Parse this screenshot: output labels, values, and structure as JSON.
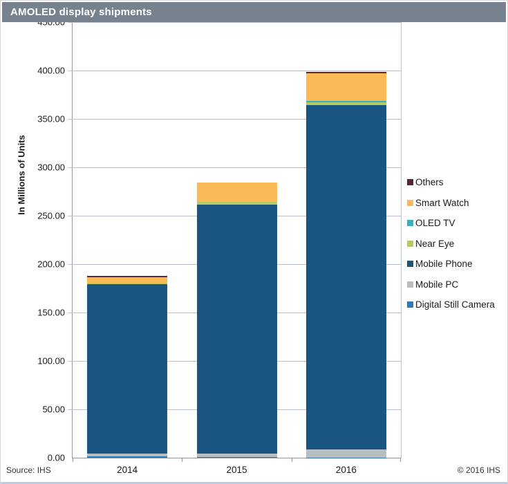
{
  "header": {
    "title": "AMOLED display shipments"
  },
  "footer": {
    "source": "Source: IHS",
    "copyright": "© 2016 IHS"
  },
  "colors": {
    "titlebar_bg": "#76838F",
    "titlebar_text": "#ffffff",
    "gridline": "#BAC0C9",
    "axis": "#8F96A0"
  },
  "chart_data": {
    "type": "bar",
    "stacked": true,
    "title": "AMOLED display shipments",
    "xlabel": "",
    "ylabel": "In Millions of Units",
    "legend_position": "right",
    "grid": true,
    "y_axis": {
      "min": 0,
      "max": 450,
      "step": 50,
      "decimals": 2,
      "title": "In Millions of Units"
    },
    "categories": [
      "2014",
      "2015",
      "2016"
    ],
    "series": [
      {
        "name": "Digital Still Camera",
        "color": "#2E79BB",
        "values": [
          1.5,
          0.5,
          0.3
        ]
      },
      {
        "name": "Mobile PC",
        "color": "#B8BDC2",
        "values": [
          2.5,
          4.0,
          8.0
        ]
      },
      {
        "name": "Mobile Phone",
        "color": "#1A5480",
        "values": [
          175.0,
          257.0,
          356.0
        ]
      },
      {
        "name": "Near Eye",
        "color": "#B4CB62",
        "values": [
          1.5,
          2.5,
          3.0
        ]
      },
      {
        "name": "OLED TV",
        "color": "#2FB3C4",
        "values": [
          0.2,
          0.3,
          1.0
        ]
      },
      {
        "name": "Smart Watch",
        "color": "#FBBA55",
        "values": [
          5.5,
          20.0,
          29.0
        ]
      },
      {
        "name": "Others",
        "color": "#5A2433",
        "values": [
          1.5,
          0.3,
          1.5
        ]
      }
    ],
    "totals": [
      187.7,
      284.6,
      398.8
    ],
    "legend_order_top_to_bottom": [
      "Others",
      "Smart Watch",
      "OLED TV",
      "Near Eye",
      "Mobile Phone",
      "Mobile PC",
      "Digital Still Camera"
    ]
  }
}
